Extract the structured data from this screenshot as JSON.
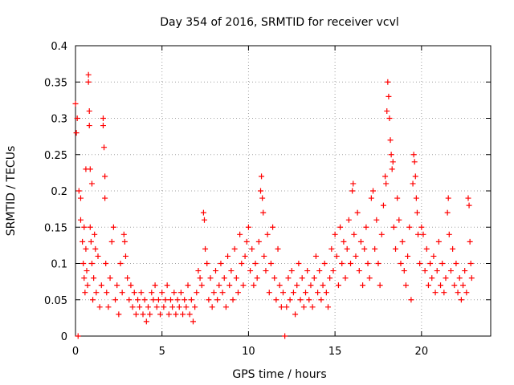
{
  "chart_data": {
    "type": "scatter",
    "title": "Day 354 of 2016, SRMTID for receiver vcvl",
    "xlabel": "GPS time / hours",
    "ylabel": "SRMTID / TECUs",
    "xlim": [
      0,
      24
    ],
    "ylim": [
      0,
      0.4
    ],
    "x_ticks": [
      0,
      5,
      10,
      15,
      20
    ],
    "x_tick_labels": [
      "0",
      "5",
      "10",
      "15",
      "20"
    ],
    "y_ticks": [
      0,
      0.05,
      0.1,
      0.15,
      0.2,
      0.25,
      0.3,
      0.35,
      0.4
    ],
    "y_tick_labels": [
      "0",
      "0.05",
      "0.1",
      "0.15",
      "0.2",
      "0.25",
      "0.3",
      "0.35",
      "0.4"
    ],
    "grid": true,
    "marker": "+",
    "color": "#ff0000",
    "series": [
      {
        "name": "SRMTID",
        "points": [
          [
            0.0,
            0.32
          ],
          [
            0.05,
            0.28
          ],
          [
            0.1,
            0.3
          ],
          [
            0.15,
            0.0
          ],
          [
            0.2,
            0.2
          ],
          [
            0.3,
            0.19
          ],
          [
            0.3,
            0.16
          ],
          [
            0.4,
            0.13
          ],
          [
            0.45,
            0.1
          ],
          [
            0.5,
            0.15
          ],
          [
            0.5,
            0.08
          ],
          [
            0.55,
            0.06
          ],
          [
            0.6,
            0.12
          ],
          [
            0.6,
            0.23
          ],
          [
            0.65,
            0.09
          ],
          [
            0.7,
            0.07
          ],
          [
            0.75,
            0.36
          ],
          [
            0.75,
            0.35
          ],
          [
            0.8,
            0.31
          ],
          [
            0.8,
            0.29
          ],
          [
            0.85,
            0.23
          ],
          [
            0.85,
            0.15
          ],
          [
            0.9,
            0.13
          ],
          [
            0.95,
            0.21
          ],
          [
            0.95,
            0.1
          ],
          [
            1.0,
            0.05
          ],
          [
            1.05,
            0.08
          ],
          [
            1.1,
            0.14
          ],
          [
            1.15,
            0.12
          ],
          [
            1.2,
            0.06
          ],
          [
            1.3,
            0.11
          ],
          [
            1.4,
            0.04
          ],
          [
            1.5,
            0.07
          ],
          [
            1.6,
            0.3
          ],
          [
            1.6,
            0.29
          ],
          [
            1.65,
            0.26
          ],
          [
            1.7,
            0.22
          ],
          [
            1.7,
            0.19
          ],
          [
            1.75,
            0.1
          ],
          [
            1.8,
            0.06
          ],
          [
            1.9,
            0.04
          ],
          [
            2.0,
            0.08
          ],
          [
            2.1,
            0.13
          ],
          [
            2.2,
            0.15
          ],
          [
            2.3,
            0.05
          ],
          [
            2.4,
            0.07
          ],
          [
            2.5,
            0.03
          ],
          [
            2.6,
            0.1
          ],
          [
            2.7,
            0.06
          ],
          [
            2.8,
            0.14
          ],
          [
            2.85,
            0.13
          ],
          [
            2.9,
            0.11
          ],
          [
            3.0,
            0.08
          ],
          [
            3.1,
            0.05
          ],
          [
            3.2,
            0.07
          ],
          [
            3.3,
            0.04
          ],
          [
            3.4,
            0.06
          ],
          [
            3.5,
            0.03
          ],
          [
            3.6,
            0.05
          ],
          [
            3.7,
            0.04
          ],
          [
            3.8,
            0.06
          ],
          [
            3.9,
            0.03
          ],
          [
            4.0,
            0.05
          ],
          [
            4.1,
            0.02
          ],
          [
            4.2,
            0.04
          ],
          [
            4.3,
            0.03
          ],
          [
            4.4,
            0.06
          ],
          [
            4.5,
            0.05
          ],
          [
            4.6,
            0.07
          ],
          [
            4.7,
            0.04
          ],
          [
            4.8,
            0.05
          ],
          [
            4.9,
            0.03
          ],
          [
            5.0,
            0.06
          ],
          [
            5.1,
            0.04
          ],
          [
            5.2,
            0.05
          ],
          [
            5.3,
            0.07
          ],
          [
            5.4,
            0.03
          ],
          [
            5.5,
            0.05
          ],
          [
            5.6,
            0.04
          ],
          [
            5.7,
            0.06
          ],
          [
            5.8,
            0.03
          ],
          [
            5.9,
            0.05
          ],
          [
            6.0,
            0.04
          ],
          [
            6.1,
            0.06
          ],
          [
            6.2,
            0.03
          ],
          [
            6.3,
            0.05
          ],
          [
            6.4,
            0.04
          ],
          [
            6.5,
            0.07
          ],
          [
            6.6,
            0.03
          ],
          [
            6.7,
            0.05
          ],
          [
            6.8,
            0.02
          ],
          [
            6.9,
            0.04
          ],
          [
            7.0,
            0.06
          ],
          [
            7.1,
            0.09
          ],
          [
            7.2,
            0.08
          ],
          [
            7.3,
            0.07
          ],
          [
            7.4,
            0.17
          ],
          [
            7.45,
            0.16
          ],
          [
            7.5,
            0.12
          ],
          [
            7.6,
            0.1
          ],
          [
            7.7,
            0.05
          ],
          [
            7.8,
            0.08
          ],
          [
            7.9,
            0.04
          ],
          [
            8.0,
            0.06
          ],
          [
            8.1,
            0.09
          ],
          [
            8.2,
            0.05
          ],
          [
            8.3,
            0.07
          ],
          [
            8.4,
            0.1
          ],
          [
            8.5,
            0.06
          ],
          [
            8.6,
            0.08
          ],
          [
            8.7,
            0.04
          ],
          [
            8.8,
            0.11
          ],
          [
            8.9,
            0.07
          ],
          [
            9.0,
            0.09
          ],
          [
            9.1,
            0.05
          ],
          [
            9.2,
            0.12
          ],
          [
            9.3,
            0.08
          ],
          [
            9.4,
            0.06
          ],
          [
            9.5,
            0.14
          ],
          [
            9.6,
            0.1
          ],
          [
            9.7,
            0.07
          ],
          [
            9.8,
            0.11
          ],
          [
            9.9,
            0.13
          ],
          [
            10.0,
            0.15
          ],
          [
            10.1,
            0.09
          ],
          [
            10.2,
            0.12
          ],
          [
            10.3,
            0.07
          ],
          [
            10.4,
            0.1
          ],
          [
            10.5,
            0.08
          ],
          [
            10.6,
            0.13
          ],
          [
            10.7,
            0.2
          ],
          [
            10.75,
            0.22
          ],
          [
            10.8,
            0.19
          ],
          [
            10.85,
            0.17
          ],
          [
            10.9,
            0.11
          ],
          [
            11.0,
            0.09
          ],
          [
            11.1,
            0.14
          ],
          [
            11.2,
            0.06
          ],
          [
            11.3,
            0.1
          ],
          [
            11.4,
            0.15
          ],
          [
            11.5,
            0.08
          ],
          [
            11.6,
            0.05
          ],
          [
            11.7,
            0.12
          ],
          [
            11.8,
            0.07
          ],
          [
            11.9,
            0.04
          ],
          [
            12.0,
            0.06
          ],
          [
            12.1,
            0.0
          ],
          [
            12.2,
            0.04
          ],
          [
            12.3,
            0.08
          ],
          [
            12.4,
            0.05
          ],
          [
            12.5,
            0.09
          ],
          [
            12.6,
            0.06
          ],
          [
            12.7,
            0.03
          ],
          [
            12.8,
            0.07
          ],
          [
            12.9,
            0.1
          ],
          [
            13.0,
            0.05
          ],
          [
            13.1,
            0.08
          ],
          [
            13.2,
            0.04
          ],
          [
            13.3,
            0.06
          ],
          [
            13.4,
            0.09
          ],
          [
            13.5,
            0.05
          ],
          [
            13.6,
            0.07
          ],
          [
            13.7,
            0.04
          ],
          [
            13.8,
            0.08
          ],
          [
            13.9,
            0.11
          ],
          [
            14.0,
            0.06
          ],
          [
            14.1,
            0.09
          ],
          [
            14.2,
            0.05
          ],
          [
            14.3,
            0.07
          ],
          [
            14.4,
            0.1
          ],
          [
            14.5,
            0.06
          ],
          [
            14.6,
            0.04
          ],
          [
            14.7,
            0.08
          ],
          [
            14.8,
            0.12
          ],
          [
            14.9,
            0.09
          ],
          [
            15.0,
            0.14
          ],
          [
            15.1,
            0.11
          ],
          [
            15.2,
            0.07
          ],
          [
            15.3,
            0.15
          ],
          [
            15.4,
            0.1
          ],
          [
            15.5,
            0.13
          ],
          [
            15.6,
            0.08
          ],
          [
            15.7,
            0.12
          ],
          [
            15.8,
            0.16
          ],
          [
            15.9,
            0.1
          ],
          [
            16.0,
            0.2
          ],
          [
            16.05,
            0.21
          ],
          [
            16.1,
            0.14
          ],
          [
            16.2,
            0.11
          ],
          [
            16.3,
            0.17
          ],
          [
            16.4,
            0.09
          ],
          [
            16.5,
            0.13
          ],
          [
            16.6,
            0.07
          ],
          [
            16.7,
            0.12
          ],
          [
            16.8,
            0.15
          ],
          [
            16.9,
            0.1
          ],
          [
            17.0,
            0.08
          ],
          [
            17.1,
            0.19
          ],
          [
            17.2,
            0.2
          ],
          [
            17.3,
            0.12
          ],
          [
            17.4,
            0.16
          ],
          [
            17.5,
            0.1
          ],
          [
            17.6,
            0.07
          ],
          [
            17.7,
            0.14
          ],
          [
            17.8,
            0.18
          ],
          [
            17.9,
            0.22
          ],
          [
            17.95,
            0.21
          ],
          [
            18.0,
            0.31
          ],
          [
            18.05,
            0.35
          ],
          [
            18.1,
            0.33
          ],
          [
            18.15,
            0.3
          ],
          [
            18.2,
            0.27
          ],
          [
            18.25,
            0.25
          ],
          [
            18.3,
            0.23
          ],
          [
            18.35,
            0.24
          ],
          [
            18.4,
            0.15
          ],
          [
            18.5,
            0.12
          ],
          [
            18.6,
            0.19
          ],
          [
            18.7,
            0.16
          ],
          [
            18.8,
            0.1
          ],
          [
            18.9,
            0.13
          ],
          [
            19.0,
            0.09
          ],
          [
            19.1,
            0.07
          ],
          [
            19.2,
            0.11
          ],
          [
            19.3,
            0.15
          ],
          [
            19.4,
            0.05
          ],
          [
            19.5,
            0.21
          ],
          [
            19.55,
            0.25
          ],
          [
            19.6,
            0.24
          ],
          [
            19.65,
            0.22
          ],
          [
            19.7,
            0.19
          ],
          [
            19.75,
            0.17
          ],
          [
            19.8,
            0.14
          ],
          [
            19.9,
            0.1
          ],
          [
            20.0,
            0.15
          ],
          [
            20.1,
            0.14
          ],
          [
            20.2,
            0.09
          ],
          [
            20.3,
            0.12
          ],
          [
            20.4,
            0.07
          ],
          [
            20.5,
            0.1
          ],
          [
            20.6,
            0.08
          ],
          [
            20.7,
            0.11
          ],
          [
            20.8,
            0.06
          ],
          [
            20.9,
            0.09
          ],
          [
            21.0,
            0.13
          ],
          [
            21.1,
            0.07
          ],
          [
            21.2,
            0.1
          ],
          [
            21.3,
            0.06
          ],
          [
            21.4,
            0.08
          ],
          [
            21.5,
            0.17
          ],
          [
            21.55,
            0.19
          ],
          [
            21.6,
            0.14
          ],
          [
            21.7,
            0.09
          ],
          [
            21.8,
            0.12
          ],
          [
            21.9,
            0.07
          ],
          [
            22.0,
            0.1
          ],
          [
            22.1,
            0.06
          ],
          [
            22.2,
            0.08
          ],
          [
            22.3,
            0.05
          ],
          [
            22.4,
            0.07
          ],
          [
            22.5,
            0.09
          ],
          [
            22.6,
            0.06
          ],
          [
            22.7,
            0.19
          ],
          [
            22.75,
            0.18
          ],
          [
            22.8,
            0.13
          ],
          [
            22.85,
            0.1
          ],
          [
            22.9,
            0.08
          ]
        ]
      }
    ]
  }
}
